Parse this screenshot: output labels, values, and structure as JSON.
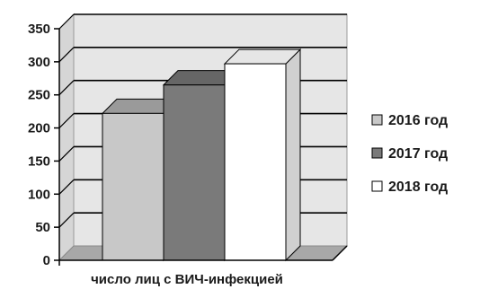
{
  "chart_data": {
    "type": "bar",
    "categories": [
      "число лиц с ВИЧ-инфекцией"
    ],
    "series": [
      {
        "name": "2016 год",
        "values": [
          222
        ],
        "color": "#c8c8c8"
      },
      {
        "name": "2017 год",
        "values": [
          265
        ],
        "color": "#7a7a7a"
      },
      {
        "name": "2018 год",
        "values": [
          297
        ],
        "color": "#ffffff"
      }
    ],
    "yticks": [
      "0",
      "50",
      "100",
      "150",
      "200",
      "250",
      "300",
      "350"
    ],
    "ylim": [
      0,
      350
    ],
    "grid": true,
    "legend_position": "right",
    "style": "3d-column",
    "wall_color": "#e6e6e6",
    "floor_color": "#a8a8a8",
    "gridline_color": "#000000"
  }
}
